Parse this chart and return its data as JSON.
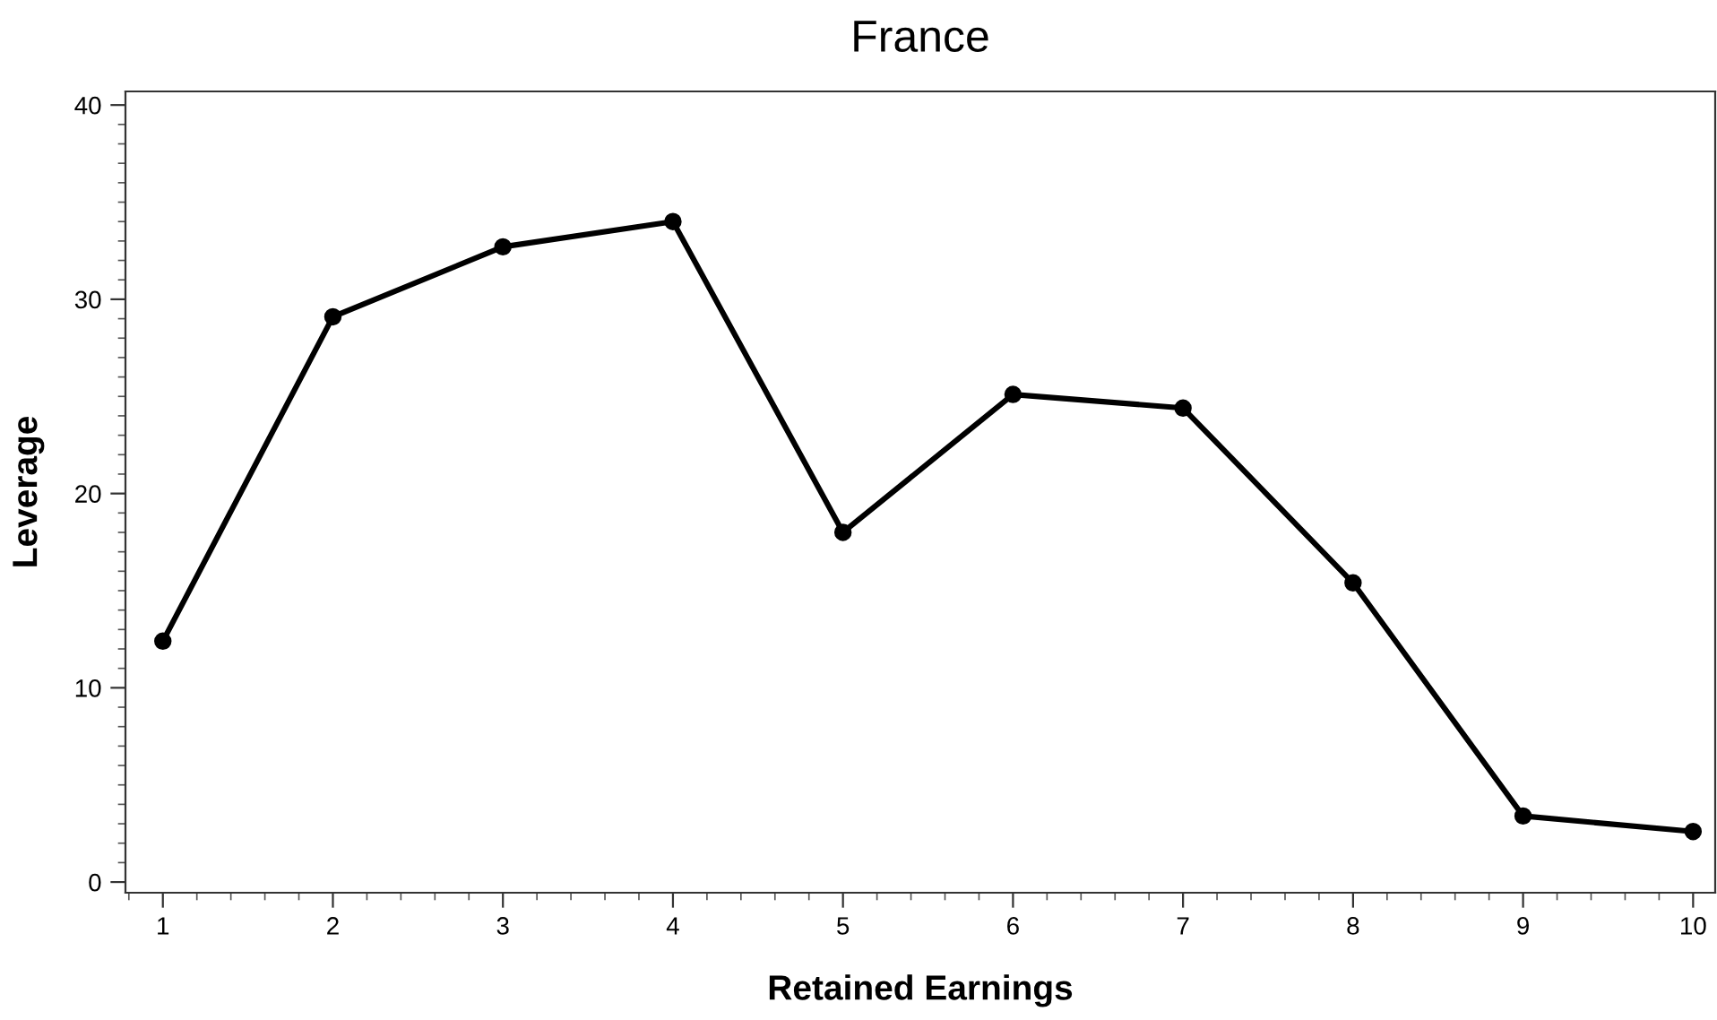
{
  "chart_data": {
    "type": "line",
    "title": "France",
    "xlabel": "Retained Earnings",
    "ylabel": "Leverage",
    "x": [
      1,
      2,
      3,
      4,
      5,
      6,
      7,
      8,
      9,
      10
    ],
    "series": [
      {
        "color": "#000000",
        "values": [
          12.4,
          29.1,
          32.7,
          34.0,
          18.0,
          25.1,
          24.4,
          15.4,
          3.4,
          2.6
        ]
      }
    ],
    "xlim": [
      0.78,
      10.13
    ],
    "xticks": [
      1,
      2,
      3,
      4,
      5,
      6,
      7,
      8,
      9,
      10
    ],
    "ylim": [
      -0.55,
      40.7
    ],
    "yticks": [
      0,
      10,
      20,
      30,
      40
    ],
    "marker": "circle",
    "line_style": "solid",
    "grid": false,
    "legend": false
  }
}
